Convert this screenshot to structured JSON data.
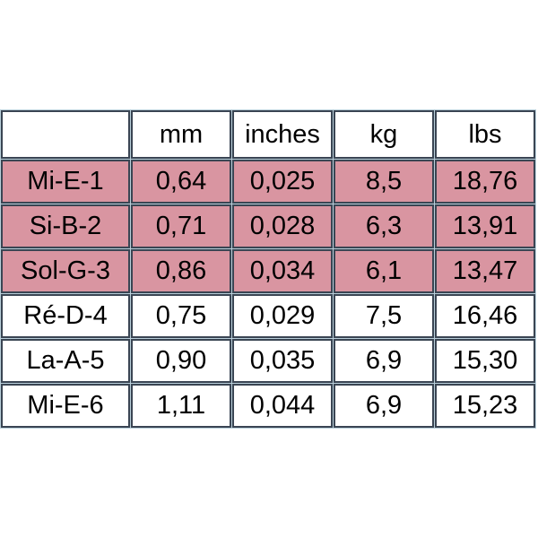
{
  "page": {
    "background": "#ffffff"
  },
  "chart_data": {
    "type": "table",
    "title": "",
    "columns": [
      "",
      "mm",
      "inches",
      "kg",
      "lbs"
    ],
    "rows": [
      [
        "Mi-E-1",
        "0,64",
        "0,025",
        "8,5",
        "18,76"
      ],
      [
        "Si-B-2",
        "0,71",
        "0,028",
        "6,3",
        "13,91"
      ],
      [
        "Sol-G-3",
        "0,86",
        "0,034",
        "6,1",
        "13,47"
      ],
      [
        "Ré-D-4",
        "0,75",
        "0,029",
        "7,5",
        "16,46"
      ],
      [
        "La-A-5",
        "0,90",
        "0,035",
        "6,9",
        "15,30"
      ],
      [
        "Mi-E-6",
        "1,11",
        "0,044",
        "6,9",
        "15,23"
      ]
    ],
    "highlighted_row_indices": [
      0,
      1,
      2
    ],
    "layout": {
      "header_row": true,
      "first_column_is_row_label": true
    },
    "colors": {
      "highlight_fill": "#d995a1",
      "cell_fill": "#ffffff",
      "cell_border": "#3a4553",
      "grid_gap": "#b9cfda",
      "corner_cell_border": "#bdd7ee",
      "text": "#000000"
    }
  }
}
